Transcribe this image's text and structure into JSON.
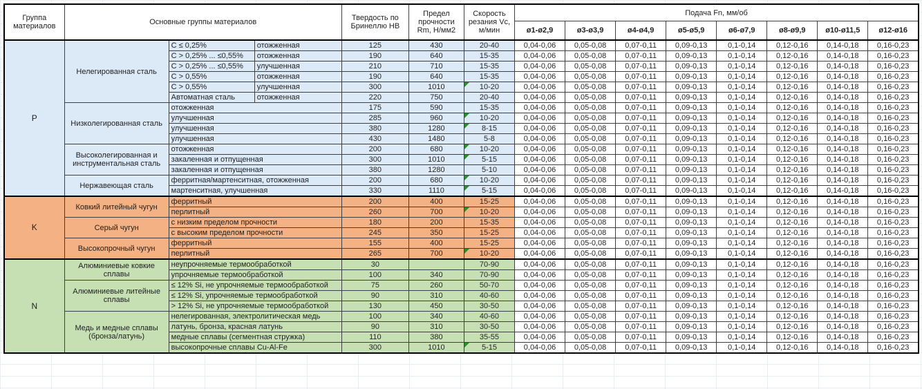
{
  "table": {
    "headers": {
      "group_col": "Группа материалов",
      "material_col": "Основные группы материалов",
      "hardness_col": "Твердость по Бринеллю HB",
      "strength_col": "Предел прочности Rm, Н/мм2",
      "speed_col": "Скорость резания Vc, м/мин",
      "feed_col": "Подача Fn, мм/об",
      "diameters": [
        "ø1-ø2,9",
        "ø3-ø3,9",
        "ø4-ø4,9",
        "ø5-ø5,9",
        "ø6-ø7,9",
        "ø8-ø9,9",
        "ø10-ø11,5",
        "ø12-ø16"
      ]
    },
    "colors": {
      "P": "#DCE9F6",
      "K": "#F4B183",
      "N": "#C6E0B4",
      "marker_green": "#2E8B2E"
    },
    "feed_values": [
      "0,04-0,06",
      "0,05-0,08",
      "0,07-0,11",
      "0,09-0,13",
      "0,1-0,14",
      "0,12-0,16",
      "0,14-0,18",
      "0,16-0,23"
    ],
    "groups": [
      {
        "code": "P",
        "color": "#DCE9F6",
        "subgroups": [
          {
            "name": "Нелегированная сталь",
            "rows": [
              {
                "cond": [
                  "C ≤ 0,25%",
                  "отожженная"
                ],
                "hb": "125",
                "rm": "430",
                "vc": "20-40"
              },
              {
                "cond": [
                  "C > 0,25% ... ≤0,55%",
                  "отожженная"
                ],
                "hb": "190",
                "rm": "640",
                "vc": "15-35"
              },
              {
                "cond": [
                  "C > 0,25% ... ≤0,55%",
                  "улучшенная"
                ],
                "hb": "210",
                "rm": "710",
                "vc": "15-35"
              },
              {
                "cond": [
                  "C > 0,55%",
                  "отожженная"
                ],
                "hb": "190",
                "rm": "640",
                "vc": "15-35"
              },
              {
                "cond": [
                  "C > 0,55%",
                  "улучшенная"
                ],
                "hb": "300",
                "rm": "1010",
                "vc": "10-20",
                "m": true
              },
              {
                "cond": [
                  "Автоматная сталь",
                  "отожженная"
                ],
                "hb": "220",
                "rm": "750",
                "vc": "20-40"
              }
            ]
          },
          {
            "name": "Низколегированная сталь",
            "rows": [
              {
                "cond": [
                  "отожженная"
                ],
                "hb": "175",
                "rm": "590",
                "vc": "15-35"
              },
              {
                "cond": [
                  "улучшенная"
                ],
                "hb": "285",
                "rm": "960",
                "vc": "10-20",
                "m": true
              },
              {
                "cond": [
                  "улучшенная"
                ],
                "hb": "380",
                "rm": "1280",
                "vc": "8-15",
                "m": true
              },
              {
                "cond": [
                  "улучшенная"
                ],
                "hb": "430",
                "rm": "1480",
                "vc": "5-8"
              }
            ]
          },
          {
            "name": "Высоколегированная и инструментальная сталь",
            "rows": [
              {
                "cond": [
                  "отожженная"
                ],
                "hb": "200",
                "rm": "680",
                "vc": "10-20",
                "m": true
              },
              {
                "cond": [
                  "закаленная и отпущенная"
                ],
                "hb": "300",
                "rm": "1010",
                "vc": "5-15",
                "m": true
              },
              {
                "cond": [
                  "закаленная и отпущенная"
                ],
                "hb": "380",
                "rm": "1280",
                "vc": "5-10"
              }
            ]
          },
          {
            "name": "Нержавеющая сталь",
            "rows": [
              {
                "cond": [
                  "ферритная/мартенситная, отожженная"
                ],
                "hb": "200",
                "rm": "680",
                "vc": "10-20",
                "m": true
              },
              {
                "cond": [
                  "мартенситная, улучшенная"
                ],
                "hb": "330",
                "rm": "1110",
                "vc": "5-15",
                "m": true
              }
            ]
          }
        ]
      },
      {
        "code": "K",
        "color": "#F4B183",
        "subgroups": [
          {
            "name": "Ковкий литейный чугун",
            "rows": [
              {
                "cond": [
                  "ферритный"
                ],
                "hb": "200",
                "rm": "400",
                "vc": "15-25"
              },
              {
                "cond": [
                  "перлитный"
                ],
                "hb": "260",
                "rm": "700",
                "vc": "10-20",
                "m": true
              }
            ]
          },
          {
            "name": "Серый чугун",
            "rows": [
              {
                "cond": [
                  "с низким пределом прочности"
                ],
                "hb": "180",
                "rm": "200",
                "vc": "15-35"
              },
              {
                "cond": [
                  "с высоким пределом прочности"
                ],
                "hb": "245",
                "rm": "350",
                "vc": "15-25"
              }
            ]
          },
          {
            "name": "Высокопрочный чугун",
            "rows": [
              {
                "cond": [
                  "ферритный"
                ],
                "hb": "155",
                "rm": "400",
                "vc": "15-25"
              },
              {
                "cond": [
                  "перлитный"
                ],
                "hb": "265",
                "rm": "700",
                "vc": "10-20",
                "m": true
              }
            ]
          }
        ]
      },
      {
        "code": "N",
        "color": "#C6E0B4",
        "subgroups": [
          {
            "name": "Алюминиевые ковкие сплавы",
            "rows": [
              {
                "cond": [
                  "неупрочняемые термообработкой"
                ],
                "hb": "30",
                "rm": "",
                "vc": "70-90"
              },
              {
                "cond": [
                  "упрочняемые термообработкой"
                ],
                "hb": "100",
                "rm": "340",
                "vc": "70-90"
              }
            ]
          },
          {
            "name": "Алюминиевые литейные сплавы",
            "rows": [
              {
                "cond": [
                  "≤ 12% Si, не упрочняемые термообработкой"
                ],
                "hb": "75",
                "rm": "260",
                "vc": "50-70"
              },
              {
                "cond": [
                  "≤ 12% Si, упрочняемые термообработкой"
                ],
                "hb": "90",
                "rm": "310",
                "vc": "40-60"
              },
              {
                "cond": [
                  "> 12% Si, не упрочняемые термообработкой"
                ],
                "hb": "130",
                "rm": "450",
                "vc": "30-50"
              }
            ]
          },
          {
            "name": "Медь и медные сплавы (бронза/латунь)",
            "rows": [
              {
                "cond": [
                  "нелегированная, электролитическая медь"
                ],
                "hb": "100",
                "rm": "340",
                "vc": "40-60"
              },
              {
                "cond": [
                  "латунь, бронза, красная латунь"
                ],
                "hb": "90",
                "rm": "310",
                "vc": "30-50"
              },
              {
                "cond": [
                  "медные сплавы (сегментная стружка)"
                ],
                "hb": "110",
                "rm": "380",
                "vc": "35-55"
              },
              {
                "cond": [
                  "высокопрочные сплавы Cu-Al-Fe"
                ],
                "hb": "300",
                "rm": "1010",
                "vc": "5-15",
                "m": true
              }
            ]
          }
        ]
      }
    ]
  }
}
